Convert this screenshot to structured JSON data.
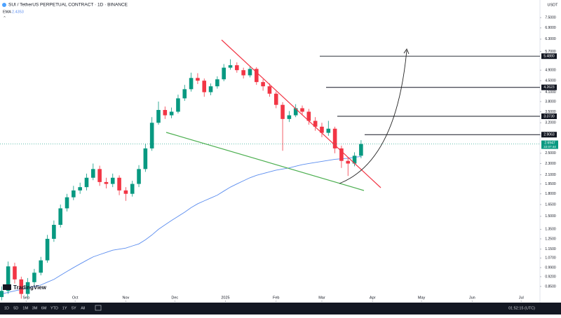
{
  "chart_data": {
    "type": "candlestick",
    "title": "SUI / TetherUS PERPETUAL CONTRACT · 1D · BINANCE",
    "currency": "USDT",
    "indicator_name": "EMA",
    "countdown": "22:07:44",
    "log_scale": true,
    "grid": false,
    "up_color": "#089981",
    "down_color": "#f23645",
    "ema_color": "#5b8def",
    "x": [
      2,
      6,
      10,
      14,
      18,
      22,
      26,
      30,
      34,
      38,
      42,
      46,
      50,
      54,
      58,
      62,
      66,
      70,
      74,
      78,
      82,
      86,
      90,
      94,
      98,
      102,
      106,
      110,
      114,
      118,
      122,
      126,
      130,
      134,
      138,
      142,
      146,
      150,
      154,
      158,
      162,
      166,
      170,
      174,
      178,
      182,
      186,
      190,
      194,
      198,
      202,
      206,
      210,
      214,
      218,
      222
    ],
    "open": [
      0.78,
      0.82,
      1.0,
      0.9,
      0.8,
      0.88,
      0.95,
      1.05,
      1.25,
      1.4,
      1.6,
      1.75,
      1.85,
      1.9,
      2.05,
      2.2,
      1.98,
      1.95,
      2.05,
      1.85,
      1.8,
      1.95,
      2.2,
      2.6,
      3.2,
      3.55,
      3.4,
      3.5,
      3.9,
      4.2,
      4.6,
      4.5,
      4.1,
      4.3,
      4.55,
      5.0,
      5.1,
      4.9,
      4.7,
      4.95,
      4.45,
      4.3,
      4.05,
      3.7,
      3.3,
      3.4,
      3.6,
      3.5,
      3.25,
      3.1,
      2.95,
      3.05,
      2.6,
      2.35,
      2.3,
      2.45
    ],
    "high": [
      0.85,
      1.04,
      1.03,
      0.92,
      0.91,
      0.98,
      1.08,
      1.29,
      1.45,
      1.65,
      1.8,
      1.92,
      1.97,
      2.12,
      2.3,
      2.26,
      2.05,
      2.12,
      2.09,
      1.9,
      2.0,
      2.27,
      2.7,
      3.35,
      3.8,
      3.65,
      3.62,
      4.02,
      4.35,
      4.8,
      4.78,
      4.58,
      4.4,
      4.66,
      5.15,
      5.35,
      5.22,
      5.0,
      5.05,
      5.02,
      4.55,
      4.4,
      4.12,
      3.78,
      3.52,
      3.72,
      3.68,
      3.58,
      3.35,
      3.2,
      3.25,
      3.1,
      2.66,
      2.42,
      2.52,
      2.78
    ],
    "low": [
      0.76,
      0.8,
      0.87,
      0.77,
      0.78,
      0.86,
      0.93,
      1.03,
      1.22,
      1.37,
      1.56,
      1.71,
      1.8,
      1.85,
      2.01,
      1.92,
      1.88,
      1.9,
      1.78,
      1.7,
      1.76,
      1.9,
      2.15,
      2.55,
      3.15,
      3.3,
      3.32,
      3.45,
      3.82,
      4.12,
      4.38,
      3.95,
      4.0,
      4.22,
      4.48,
      4.92,
      4.8,
      4.58,
      4.62,
      4.35,
      4.15,
      3.95,
      3.6,
      2.55,
      3.22,
      3.35,
      3.4,
      3.15,
      3.0,
      2.85,
      2.88,
      2.5,
      2.22,
      2.08,
      2.25,
      2.4
    ],
    "close": [
      0.82,
      1.0,
      0.9,
      0.8,
      0.88,
      0.95,
      1.05,
      1.25,
      1.4,
      1.6,
      1.75,
      1.85,
      1.9,
      2.05,
      2.2,
      1.98,
      1.95,
      2.05,
      1.85,
      1.8,
      1.95,
      2.2,
      2.6,
      3.2,
      3.55,
      3.4,
      3.5,
      3.9,
      4.2,
      4.6,
      4.5,
      4.1,
      4.3,
      4.55,
      5.0,
      5.1,
      4.9,
      4.7,
      4.95,
      4.45,
      4.3,
      4.05,
      3.7,
      3.3,
      3.4,
      3.6,
      3.5,
      3.25,
      3.1,
      2.95,
      3.05,
      2.6,
      2.35,
      2.3,
      2.45,
      2.6947
    ],
    "ema": [
      0.8,
      0.81,
      0.82,
      0.83,
      0.84,
      0.85,
      0.86,
      0.88,
      0.9,
      0.93,
      0.96,
      0.99,
      1.02,
      1.05,
      1.08,
      1.1,
      1.12,
      1.14,
      1.15,
      1.16,
      1.18,
      1.2,
      1.24,
      1.29,
      1.35,
      1.4,
      1.45,
      1.5,
      1.55,
      1.61,
      1.66,
      1.7,
      1.74,
      1.78,
      1.84,
      1.9,
      1.95,
      2.0,
      2.05,
      2.09,
      2.12,
      2.15,
      2.18,
      2.2,
      2.22,
      2.25,
      2.28,
      2.3,
      2.32,
      2.34,
      2.36,
      2.38,
      2.39,
      2.4,
      2.42,
      2.4353
    ],
    "xlim": [
      1,
      331.5
    ],
    "xticks": [
      {
        "value": 17,
        "label": "Sep"
      },
      {
        "value": 47,
        "label": "Oct"
      },
      {
        "value": 78,
        "label": "Nov"
      },
      {
        "value": 108,
        "label": "Dec"
      },
      {
        "value": 139,
        "label": "2025"
      },
      {
        "value": 170,
        "label": "Feb"
      },
      {
        "value": 198,
        "label": "Mar"
      },
      {
        "value": 229,
        "label": "Apr"
      },
      {
        "value": 259,
        "label": "May"
      },
      {
        "value": 290,
        "label": "Jun"
      },
      {
        "value": 320,
        "label": "Jul"
      }
    ],
    "ylim": [
      0.75,
      8.65
    ],
    "yticks": [
      {
        "value": 7.5,
        "label": "7.5000"
      },
      {
        "value": 6.9,
        "label": "6.9000"
      },
      {
        "value": 6.3,
        "label": "6.3000"
      },
      {
        "value": 5.7,
        "label": "5.7000"
      },
      {
        "value": 4.9,
        "label": "4.9000"
      },
      {
        "value": 4.5,
        "label": "4.5000"
      },
      {
        "value": 4.1,
        "label": "4.1000"
      },
      {
        "value": 3.8,
        "label": "3.8000"
      },
      {
        "value": 3.5,
        "label": "3.5000"
      },
      {
        "value": 3.2,
        "label": "3.2000"
      },
      {
        "value": 2.9,
        "label": "2.9000"
      },
      {
        "value": 2.5,
        "label": "2.5000"
      },
      {
        "value": 2.3,
        "label": "2.3000"
      },
      {
        "value": 2.1,
        "label": "2.1000"
      },
      {
        "value": 1.95,
        "label": "1.9500"
      },
      {
        "value": 1.8,
        "label": "1.8000"
      },
      {
        "value": 1.65,
        "label": "1.6500"
      },
      {
        "value": 1.5,
        "label": "1.5000"
      },
      {
        "value": 1.35,
        "label": "1.3500"
      },
      {
        "value": 1.25,
        "label": "1.2500"
      },
      {
        "value": 1.15,
        "label": "1.1500"
      },
      {
        "value": 1.07,
        "label": "1.0700"
      },
      {
        "value": 0.99,
        "label": "0.9900"
      },
      {
        "value": 0.92,
        "label": "0.9200"
      },
      {
        "value": 0.85,
        "label": "0.8500"
      }
    ],
    "levels": [
      {
        "value": 5.488,
        "label": "5.4880"
      },
      {
        "value": 4.2623,
        "label": "4.2623"
      },
      {
        "value": 3.373,
        "label": "3.3730"
      },
      {
        "value": 2.9063,
        "label": "2.9063"
      }
    ]
  },
  "branding": "TradingView",
  "toolbar": [
    "1D",
    "5D",
    "1M",
    "3M",
    "6M",
    "YTD",
    "1Y",
    "5Y",
    "All"
  ],
  "clock": "01:52:15 (UTC)"
}
